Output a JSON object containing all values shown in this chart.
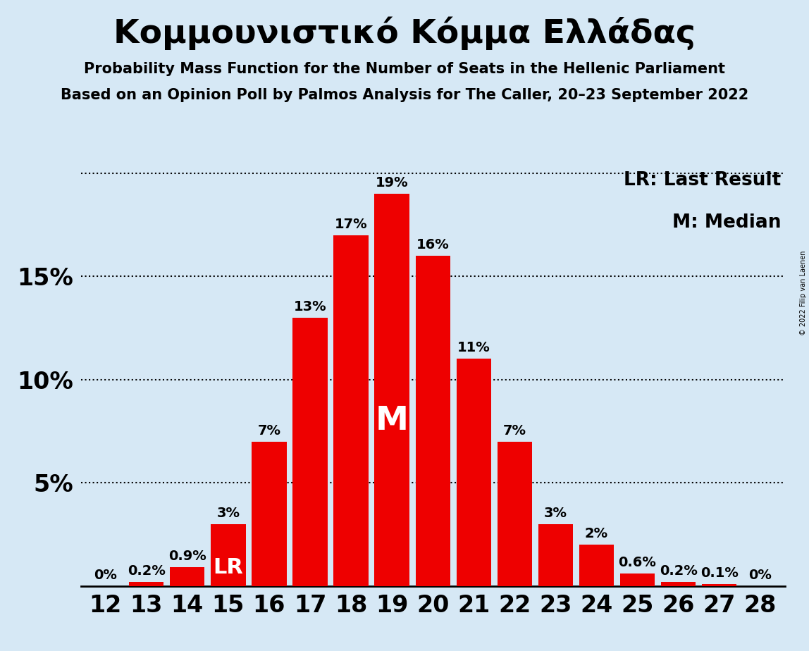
{
  "title": "Κομμουνιστικό Κόμμα Ελλάδας",
  "subtitle1": "Probability Mass Function for the Number of Seats in the Hellenic Parliament",
  "subtitle2": "Based on an Opinion Poll by Palmos Analysis for The Caller, 20–23 September 2022",
  "copyright": "© 2022 Filip van Laenen",
  "seats": [
    12,
    13,
    14,
    15,
    16,
    17,
    18,
    19,
    20,
    21,
    22,
    23,
    24,
    25,
    26,
    27,
    28
  ],
  "probabilities": [
    0.0,
    0.2,
    0.9,
    3.0,
    7.0,
    13.0,
    17.0,
    19.0,
    16.0,
    11.0,
    7.0,
    3.0,
    2.0,
    0.6,
    0.2,
    0.1,
    0.0
  ],
  "bar_color": "#ee0000",
  "background_color": "#d6e8f5",
  "bar_labels": [
    "0%",
    "0.2%",
    "0.9%",
    "3%",
    "7%",
    "13%",
    "17%",
    "19%",
    "16%",
    "11%",
    "7%",
    "3%",
    "2%",
    "0.6%",
    "0.2%",
    "0.1%",
    "0%"
  ],
  "median_seat": 19,
  "lr_seat": 15,
  "ylim": [
    0,
    20.5
  ],
  "lr_annotation": "LR: Last Result",
  "m_annotation": "M: Median"
}
